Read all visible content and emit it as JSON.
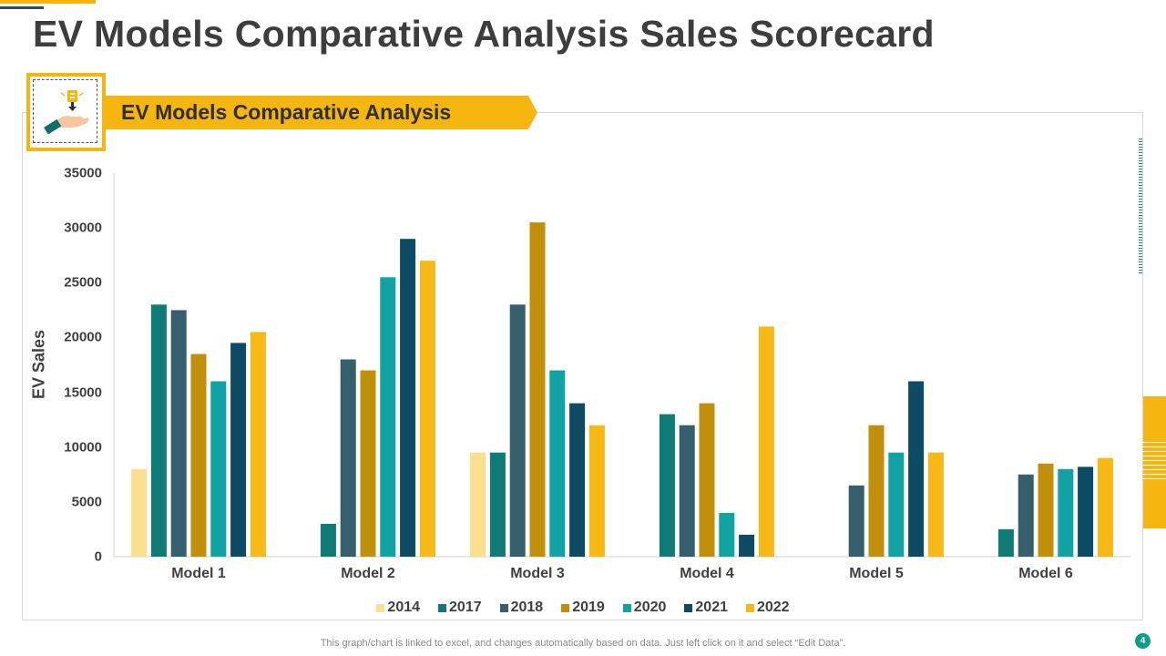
{
  "page": {
    "title": "EV Models Comparative Analysis Sales Scorecard",
    "banner": "EV Models Comparative Analysis",
    "footer": "This graph/chart is linked to excel,  and changes automatically based on data. Just left click on it and select “Edit Data”.",
    "page_number": "4",
    "icon": "hand-holding-charger-icon",
    "accent_color": "#f5b70f"
  },
  "chart_data": {
    "type": "bar",
    "title": "EV Models Comparative Analysis",
    "xlabel": "",
    "ylabel": "EV Sales",
    "ylim": [
      0,
      35000
    ],
    "yticks": [
      "35000",
      "30000",
      "25000",
      "20000",
      "15000",
      "10000",
      "5000",
      "0"
    ],
    "grid": false,
    "legend_position": "bottom",
    "categories": [
      "Model 1",
      "Model 2",
      "Model 3",
      "Model 4",
      "Model 5",
      "Model 6"
    ],
    "series": [
      {
        "name": "2014",
        "color": "#fde08f",
        "values": [
          8000,
          0,
          9500,
          0,
          0,
          0
        ]
      },
      {
        "name": "2017",
        "color": "#0e7b76",
        "values": [
          23000,
          3000,
          9500,
          13000,
          0,
          2500
        ]
      },
      {
        "name": "2018",
        "color": "#355f6c",
        "values": [
          22500,
          18000,
          23000,
          12000,
          6500,
          7500
        ]
      },
      {
        "name": "2019",
        "color": "#c28f0b",
        "values": [
          18500,
          17000,
          30500,
          14000,
          12000,
          8500
        ]
      },
      {
        "name": "2020",
        "color": "#11a3a3",
        "values": [
          16000,
          25500,
          17000,
          4000,
          9500,
          8000
        ]
      },
      {
        "name": "2021",
        "color": "#0d4a63",
        "values": [
          19500,
          29000,
          14000,
          2000,
          16000,
          8200
        ]
      },
      {
        "name": "2022",
        "color": "#f8b815",
        "values": [
          20500,
          27000,
          12000,
          21000,
          9500,
          9000
        ]
      }
    ]
  }
}
